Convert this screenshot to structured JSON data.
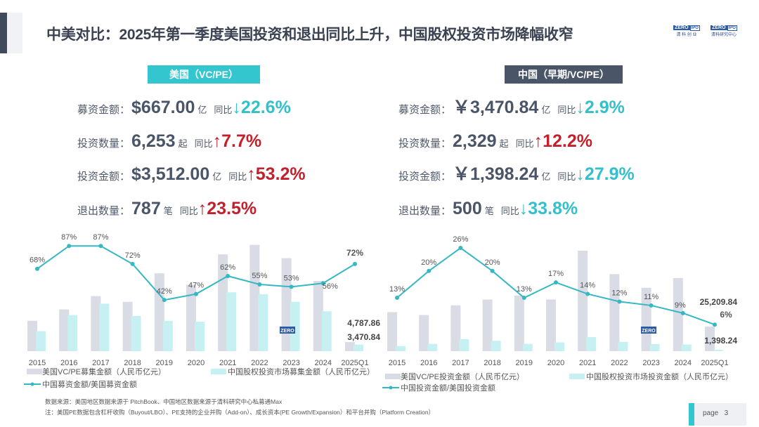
{
  "header": {
    "title": "中美对比：2025年第一季度美国投资和退出同比上升，中国股权投资市场降幅收窄",
    "logos": [
      {
        "top": "ZERO IPO",
        "sub": "清 科 创 业"
      },
      {
        "top": "ZERO IPO",
        "sub": "清科研究中心"
      }
    ]
  },
  "us": {
    "tag": "美国（VC/PE）",
    "stats": [
      {
        "label": "募资金额：",
        "value": "$667.00",
        "unit": "亿",
        "yoy": "同比",
        "change": "↓22.6%",
        "dir": "down"
      },
      {
        "label": "投资数量：",
        "value": "6,253",
        "unit": "起",
        "yoy": "同比",
        "change": "↑7.7%",
        "dir": "up"
      },
      {
        "label": "投资金额：",
        "value": "$3,512.00",
        "unit": "亿",
        "yoy": "同比",
        "change": "↑53.2%",
        "dir": "up"
      },
      {
        "label": "退出数量：",
        "value": "787",
        "unit": "笔",
        "yoy": "同比",
        "change": "↑23.5%",
        "dir": "up"
      }
    ]
  },
  "cn": {
    "tag": "中国（早期/VC/PE）",
    "stats": [
      {
        "label": "募资金额：",
        "value": "￥3,470.84",
        "unit": "亿",
        "yoy": "同比",
        "change": "↓2.9%",
        "dir": "down"
      },
      {
        "label": "投资数量：",
        "value": "2,329",
        "unit": "起",
        "yoy": "同比",
        "change": "↑12.2%",
        "dir": "up"
      },
      {
        "label": "投资金额：",
        "value": "￥1,398.24",
        "unit": "亿",
        "yoy": "同比",
        "change": "↓27.9%",
        "dir": "down"
      },
      {
        "label": "退出数量：",
        "value": "500",
        "unit": "笔",
        "yoy": "同比",
        "change": "↓33.8%",
        "dir": "down"
      }
    ]
  },
  "colors": {
    "gray_bar": "#d9dce4",
    "cyan_bar": "#c6f0f1",
    "line": "#35b8c3",
    "up": "#c4202b",
    "down": "#33c0ca"
  },
  "chart_data": [
    {
      "type": "bar+line",
      "categories": [
        "2015",
        "2016",
        "2017",
        "2018",
        "2019",
        "2020",
        "2021",
        "2022",
        "2023",
        "2024",
        "2025Q1"
      ],
      "series": [
        {
          "name": "美国VC/PE募集金额（人民币亿元）",
          "kind": "bar",
          "values": [
            16000,
            22000,
            29000,
            26000,
            41000,
            35000,
            51000,
            56000,
            49000,
            37000,
            4787.86
          ]
        },
        {
          "name": "中国股权投资市场募集金额（人民币亿元）",
          "kind": "bar",
          "values": [
            10500,
            19000,
            25000,
            18500,
            16000,
            15500,
            31000,
            30000,
            26000,
            21000,
            3470.84
          ]
        },
        {
          "name": "中国募资金额/美国募资金额",
          "kind": "line",
          "values": [
            68,
            87,
            87,
            72,
            42,
            47,
            62,
            55,
            53,
            56,
            72
          ],
          "labels": [
            "68%",
            "87%",
            "87%",
            "72%",
            "42%",
            "47%",
            "62%",
            "55%",
            "53%",
            "56%",
            "72%"
          ]
        }
      ],
      "annotations": [
        "4,787.86",
        "3,470.84"
      ]
    },
    {
      "type": "bar+line",
      "categories": [
        "2015",
        "2016",
        "2017",
        "2018",
        "2019",
        "2020",
        "2021",
        "2022",
        "2023",
        "2024",
        "2025Q1"
      ],
      "series": [
        {
          "name": "美国VC/PE投资金额（人民币亿元）",
          "kind": "bar",
          "values": [
            40000,
            37000,
            47000,
            53000,
            57000,
            53000,
            103000,
            79000,
            65000,
            75000,
            25209.84
          ]
        },
        {
          "name": "中国股权投资市场投资金额（人民币亿元）",
          "kind": "bar",
          "values": [
            5200,
            7400,
            12200,
            10600,
            7400,
            9000,
            14400,
            9500,
            7200,
            6800,
            1398.24
          ]
        },
        {
          "name": "中国投资金额/美国投资金额",
          "kind": "line",
          "values": [
            13,
            20,
            26,
            20,
            13,
            17,
            14,
            12,
            11,
            9,
            6
          ],
          "labels": [
            "13%",
            "20%",
            "26%",
            "20%",
            "13%",
            "17%",
            "14%",
            "12%",
            "11%",
            "9%",
            "6%"
          ]
        }
      ],
      "annotations": [
        "25,209.84",
        "1,398.24"
      ]
    }
  ],
  "footer": {
    "source": "数据来源：美国地区数据来源于 PitchBook、中国地区数据来源于清科研究中心私募通Max",
    "note": "注：美国PE数据包含杠杆收购（Buyout/LBO）、PE支持的企业并购（Add-on）、成长资本(PE Growth/Expansion）和平台并购（Platform Creation）",
    "page_label": "page",
    "page_num": "3"
  }
}
